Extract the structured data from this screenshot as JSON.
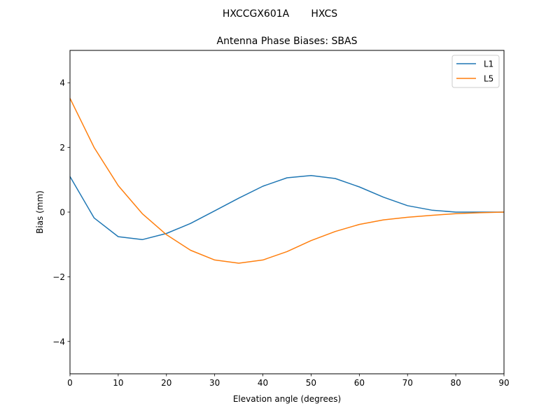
{
  "figure": {
    "suptitle": "HXCCGX601A       HXCS",
    "title": "Antenna Phase Biases: SBAS"
  },
  "chart_data": {
    "type": "line",
    "title": "Antenna Phase Biases: SBAS",
    "suptitle": "HXCCGX601A       HXCS",
    "xlabel": "Elevation angle (degrees)",
    "ylabel": "Bias (mm)",
    "xlim": [
      0,
      90
    ],
    "ylim": [
      -5,
      5
    ],
    "xticks": [
      0,
      10,
      20,
      30,
      40,
      50,
      60,
      70,
      80,
      90
    ],
    "yticks": [
      -4,
      -2,
      0,
      2,
      4
    ],
    "ytick_labels": [
      "−4",
      "−2",
      "0",
      "2",
      "4"
    ],
    "grid": false,
    "legend_position": "upper right",
    "x": [
      0,
      5,
      10,
      15,
      20,
      25,
      30,
      35,
      40,
      45,
      50,
      55,
      60,
      65,
      70,
      75,
      80,
      85,
      90
    ],
    "series": [
      {
        "name": "L1",
        "color": "#1f77b4",
        "values": [
          1.1,
          -0.18,
          -0.76,
          -0.85,
          -0.66,
          -0.35,
          0.04,
          0.43,
          0.8,
          1.06,
          1.13,
          1.04,
          0.78,
          0.46,
          0.2,
          0.06,
          0.0,
          0.0,
          0.0
        ]
      },
      {
        "name": "L5",
        "color": "#ff7f0e",
        "values": [
          3.52,
          2.0,
          0.82,
          -0.05,
          -0.7,
          -1.18,
          -1.48,
          -1.58,
          -1.48,
          -1.22,
          -0.88,
          -0.6,
          -0.38,
          -0.24,
          -0.16,
          -0.1,
          -0.05,
          -0.02,
          0.0
        ]
      }
    ]
  }
}
